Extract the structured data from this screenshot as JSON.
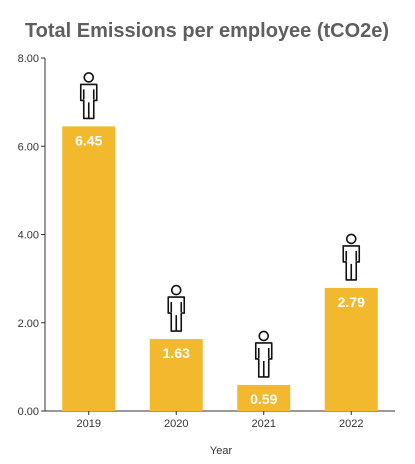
{
  "chart_data": {
    "type": "bar",
    "title": "Total Emissions per employee (tCO2e)",
    "xlabel": "Year",
    "ylabel": "",
    "categories": [
      "2019",
      "2020",
      "2021",
      "2022"
    ],
    "values": [
      6.45,
      1.63,
      0.59,
      2.79
    ],
    "value_labels": [
      "6.45",
      "1.63",
      "0.59",
      "2.79"
    ],
    "ylim": [
      0,
      8
    ],
    "yticks": [
      "0.00",
      "2.00",
      "4.00",
      "6.00",
      "8.00"
    ],
    "grid": false,
    "legend": "none",
    "bar_color": "#F2B92E",
    "marker_icon": "person-icon"
  }
}
